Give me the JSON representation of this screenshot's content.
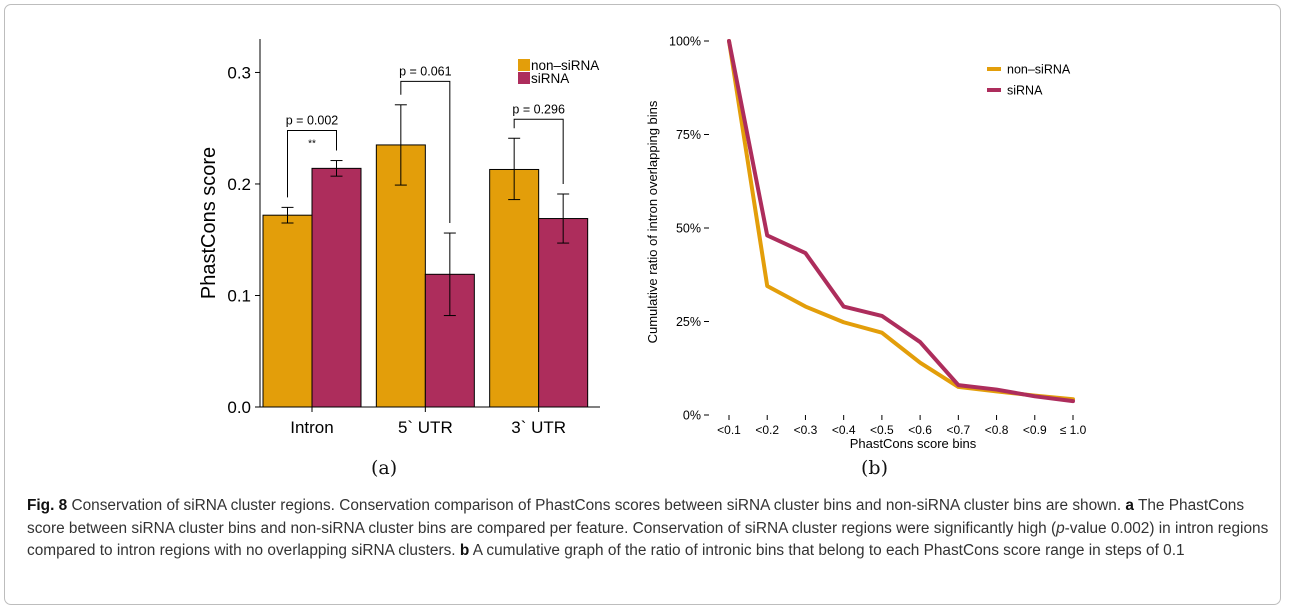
{
  "panels": {
    "a": {
      "label": "(a)"
    },
    "b": {
      "label": "(b)"
    }
  },
  "caption": {
    "fig_label": "Fig. 8",
    "lead": "Conservation of siRNA cluster regions. Conservation comparison of PhastCons scores between siRNA cluster bins and non-siRNA cluster bins are shown.",
    "a_label": "a",
    "a_text_1": "The PhastCons score between siRNA cluster bins and non-siRNA cluster bins are compared per feature. Conservation of siRNA cluster regions were significantly high (",
    "a_p": "p",
    "a_text_2": "-value 0.002) in intron regions compared to intron regions with no overlapping siRNA clusters.",
    "b_label": "b",
    "b_text": "A cumulative graph of the ratio of intronic bins that belong to each PhastCons score range in steps of 0.1"
  },
  "chart_data": [
    {
      "type": "bar",
      "ylabel": "PhastCons score",
      "xlabel": "",
      "ylim": [
        0,
        0.33
      ],
      "yticks": [
        0.0,
        0.1,
        0.2,
        0.3
      ],
      "ytick_labels": [
        "0.0",
        "0.1",
        "0.2",
        "0.3"
      ],
      "categories": [
        "Intron",
        "5` UTR",
        "3` UTR"
      ],
      "legend_position": "top-right",
      "series": [
        {
          "name": "non–siRNA",
          "color": "#e39e0a",
          "values": [
            0.172,
            0.235,
            0.213
          ],
          "err_low": [
            0.165,
            0.199,
            0.186
          ],
          "err_high": [
            0.179,
            0.271,
            0.241
          ]
        },
        {
          "name": "siRNA",
          "color": "#ad2d5c",
          "values": [
            0.214,
            0.119,
            0.169
          ],
          "err_low": [
            0.207,
            0.082,
            0.147
          ],
          "err_high": [
            0.221,
            0.156,
            0.191
          ]
        }
      ],
      "annotations": [
        {
          "group": 0,
          "text": "p = 0.002",
          "stars": "**",
          "bracket_y": 0.248
        },
        {
          "group": 1,
          "text": "p = 0.061",
          "stars": "",
          "bracket_y": 0.292
        },
        {
          "group": 2,
          "text": "p = 0.296",
          "stars": "",
          "bracket_y": 0.258
        }
      ]
    },
    {
      "type": "line",
      "ylabel": "Cumulative ratio of intron overlapping bins",
      "xlabel": "PhastCons score bins",
      "ylim": [
        0,
        100
      ],
      "yticks": [
        0,
        25,
        50,
        75,
        100
      ],
      "ytick_labels": [
        "0%",
        "25%",
        "50%",
        "75%",
        "100%"
      ],
      "categories": [
        "<0.1",
        "<0.2",
        "<0.3",
        "<0.4",
        "<0.5",
        "<0.6",
        "<0.7",
        "<0.8",
        "<0.9",
        "≤ 1.0"
      ],
      "legend_position": "top-right",
      "series": [
        {
          "name": "non–siRNA",
          "color": "#e39e0a",
          "values": [
            100,
            34.5,
            29.0,
            24.8,
            22.0,
            14.0,
            7.5,
            6.3,
            5.2,
            4.2
          ]
        },
        {
          "name": "siRNA",
          "color": "#ad2d5c",
          "values": [
            100,
            48.0,
            43.3,
            29.0,
            26.5,
            19.5,
            8.0,
            6.8,
            5.0,
            3.7
          ]
        }
      ]
    }
  ]
}
